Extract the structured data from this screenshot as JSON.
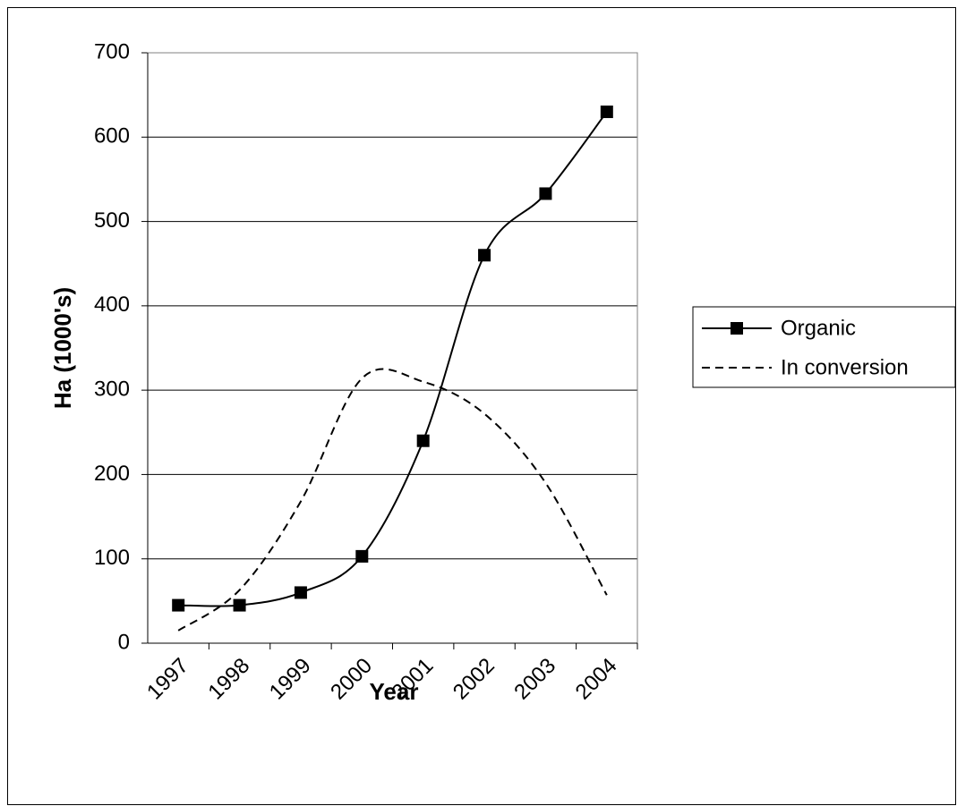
{
  "chart_data": {
    "type": "line",
    "x_label": "Year",
    "y_label": "Ha (1000's)",
    "categories": [
      "1997",
      "1998",
      "1999",
      "2000",
      "2001",
      "2002",
      "2003",
      "2004"
    ],
    "series": [
      {
        "name": "Organic",
        "color": "#000000",
        "marker": "square",
        "dash": "solid",
        "values": [
          45,
          45,
          60,
          103,
          240,
          460,
          533,
          630
        ]
      },
      {
        "name": "In conversion",
        "color": "#000000",
        "marker": "none",
        "dash": "dashed",
        "values": [
          15,
          63,
          168,
          314,
          310,
          272,
          190,
          57
        ]
      }
    ],
    "ylim": [
      0,
      700
    ],
    "yticks": [
      0,
      100,
      200,
      300,
      400,
      500,
      600,
      700
    ],
    "grid": true,
    "smooth": true,
    "legend": "right"
  }
}
